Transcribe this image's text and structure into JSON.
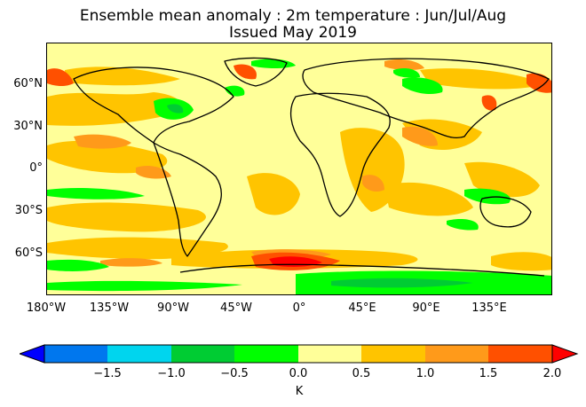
{
  "title": "Ensemble mean anomaly : 2m temperature : Jun/Jul/Aug",
  "subtitle": "Issued May 2019",
  "map": {
    "projection": "equirectangular",
    "lon_range": [
      -180,
      180
    ],
    "lat_range": [
      -90,
      90
    ],
    "coastlines": true,
    "country_borders": true
  },
  "lat_ticks": [
    {
      "label": "60°N",
      "value": 60
    },
    {
      "label": "30°N",
      "value": 30
    },
    {
      "label": "0°",
      "value": 0
    },
    {
      "label": "30°S",
      "value": -30
    },
    {
      "label": "60°S",
      "value": -60
    }
  ],
  "lon_ticks": [
    {
      "label": "180°W",
      "value": -180
    },
    {
      "label": "135°W",
      "value": -135
    },
    {
      "label": "90°W",
      "value": -90
    },
    {
      "label": "45°W",
      "value": -45
    },
    {
      "label": "0°",
      "value": 0
    },
    {
      "label": "45°E",
      "value": 45
    },
    {
      "label": "90°E",
      "value": 90
    },
    {
      "label": "135°E",
      "value": 135
    }
  ],
  "colorbar": {
    "units": "K",
    "extend": "both",
    "bins": [
      {
        "from": -2.0,
        "to": -1.5,
        "color": "#0077ee"
      },
      {
        "from": -1.5,
        "to": -1.0,
        "color": "#00d5ee"
      },
      {
        "from": -1.0,
        "to": -0.5,
        "color": "#00cc33"
      },
      {
        "from": -0.5,
        "to": 0.0,
        "color": "#00ff00"
      },
      {
        "from": 0.0,
        "to": 0.5,
        "color": "#ffff99"
      },
      {
        "from": 0.5,
        "to": 1.0,
        "color": "#ffc400"
      },
      {
        "from": 1.0,
        "to": 1.5,
        "color": "#ff9a1a"
      },
      {
        "from": 1.5,
        "to": 2.0,
        "color": "#ff5000"
      }
    ],
    "low_extension_color": "#0000ff",
    "high_extension_color": "#ff0000",
    "tick_labels": [
      {
        "label": "−1.5",
        "value": -1.5
      },
      {
        "label": "−1.0",
        "value": -1.0
      },
      {
        "label": "−0.5",
        "value": -0.5
      },
      {
        "label": "0.0",
        "value": 0.0
      },
      {
        "label": "0.5",
        "value": 0.5
      },
      {
        "label": "1.0",
        "value": 1.0
      },
      {
        "label": "1.5",
        "value": 1.5
      },
      {
        "label": "2.0",
        "value": 2.0
      }
    ]
  }
}
